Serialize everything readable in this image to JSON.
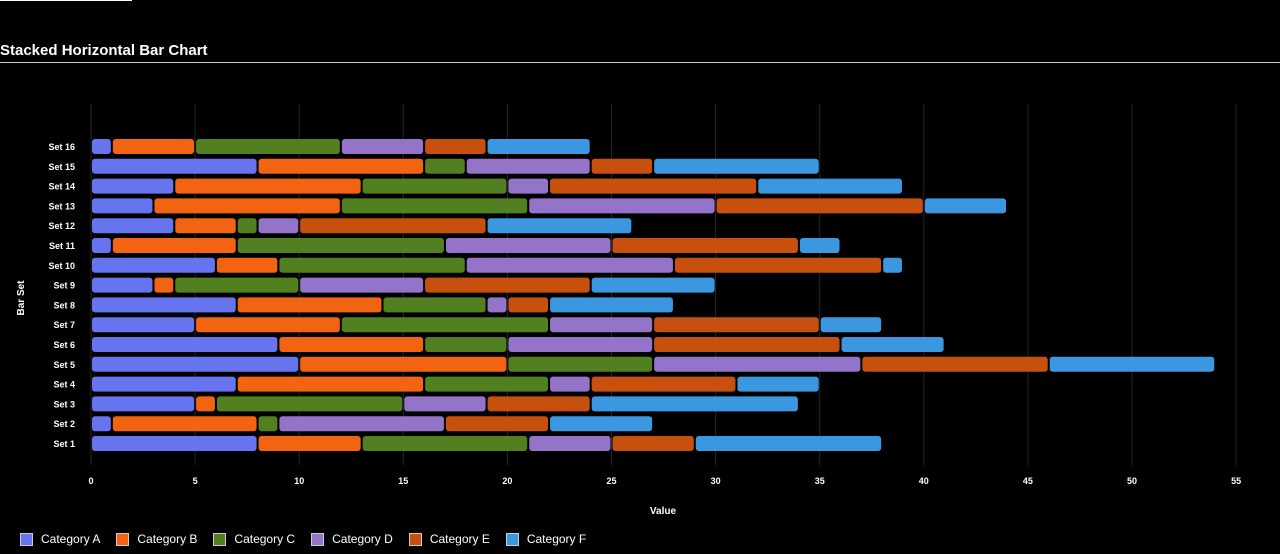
{
  "chart_data": {
    "type": "bar",
    "orientation": "horizontal",
    "stacked": true,
    "title": "Stacked Horizontal Bar Chart",
    "xlabel": "Value",
    "ylabel": "Bar Set",
    "xlim": [
      0,
      55
    ],
    "xticks": [
      0,
      5,
      10,
      15,
      20,
      25,
      30,
      35,
      40,
      45,
      50,
      55
    ],
    "grid": true,
    "legend_position": "bottom-left",
    "categories": [
      "Set 1",
      "Set 2",
      "Set 3",
      "Set 4",
      "Set 5",
      "Set 6",
      "Set 7",
      "Set 8",
      "Set 9",
      "Set 10",
      "Set 11",
      "Set 12",
      "Set 13",
      "Set 14",
      "Set 15",
      "Set 16"
    ],
    "series": [
      {
        "name": "Category A",
        "color": "#6674f0",
        "values": [
          8,
          1,
          5,
          7,
          10,
          9,
          5,
          7,
          3,
          6,
          1,
          4,
          3,
          4,
          8,
          1
        ]
      },
      {
        "name": "Category B",
        "color": "#f26412",
        "values": [
          5,
          7,
          1,
          9,
          10,
          7,
          7,
          7,
          1,
          3,
          6,
          3,
          9,
          9,
          8,
          4
        ]
      },
      {
        "name": "Category C",
        "color": "#528020",
        "values": [
          8,
          1,
          9,
          6,
          7,
          4,
          10,
          5,
          6,
          9,
          10,
          1,
          9,
          7,
          2,
          7
        ]
      },
      {
        "name": "Category D",
        "color": "#9374c8",
        "values": [
          4,
          8,
          4,
          2,
          10,
          7,
          5,
          1,
          6,
          10,
          8,
          2,
          9,
          2,
          6,
          4
        ]
      },
      {
        "name": "Category E",
        "color": "#c8500e",
        "values": [
          4,
          5,
          5,
          7,
          9,
          9,
          8,
          2,
          8,
          10,
          9,
          9,
          10,
          10,
          3,
          3
        ]
      },
      {
        "name": "Category F",
        "color": "#3b97e0",
        "values": [
          9,
          5,
          10,
          4,
          8,
          5,
          3,
          6,
          6,
          1,
          2,
          7,
          4,
          7,
          8,
          5
        ]
      }
    ]
  }
}
